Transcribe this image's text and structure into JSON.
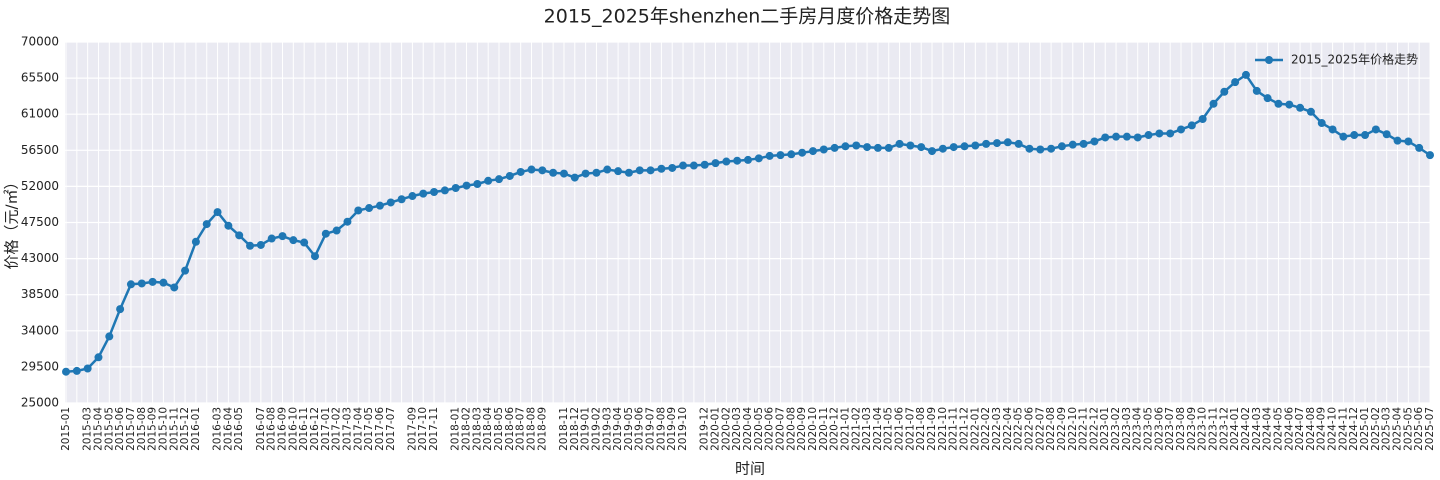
{
  "chart_data": {
    "type": "line",
    "title": "2015_2025年shenzhen二手房月度价格走势图",
    "x_label": "时间",
    "y_label": "价格（元/㎡）",
    "legend": "upper right",
    "grid": true,
    "categories": [
      "2015-01",
      null,
      "2015-03",
      "2015-04",
      "2015-05",
      "2015-06",
      "2015-07",
      "2015-08",
      "2015-09",
      "2015-10",
      "2015-11",
      "2015-12",
      "2016-01",
      null,
      "2016-03",
      "2016-04",
      "2016-05",
      null,
      "2016-07",
      "2016-08",
      "2016-09",
      "2016-10",
      "2016-11",
      "2016-12",
      "2017-01",
      "2017-02",
      "2017-03",
      "2017-04",
      "2017-05",
      "2017-06",
      "2017-07",
      null,
      "2017-09",
      "2017-10",
      "2017-11",
      null,
      "2018-01",
      "2018-02",
      "2018-03",
      "2018-04",
      "2018-05",
      "2018-06",
      "2018-07",
      "2018-08",
      "2018-09",
      null,
      "2018-11",
      "2018-12",
      "2019-01",
      "2019-02",
      "2019-03",
      "2019-04",
      "2019-05",
      "2019-06",
      "2019-07",
      "2019-08",
      "2019-09",
      "2019-10",
      null,
      "2019-12",
      "2020-01",
      "2020-02",
      "2020-03",
      "2020-04",
      "2020-05",
      "2020-06",
      "2020-07",
      "2020-08",
      "2020-09",
      "2020-10",
      "2020-11",
      "2020-12",
      "2021-01",
      "2021-02",
      "2021-03",
      "2021-04",
      "2021-05",
      "2021-06",
      "2021-07",
      "2021-08",
      "2021-09",
      "2021-10",
      "2021-11",
      "2021-12",
      "2022-01",
      "2022-02",
      "2022-03",
      "2022-04",
      "2022-05",
      "2022-06",
      "2022-07",
      "2022-08",
      "2022-09",
      "2022-10",
      "2022-11",
      "2022-12",
      "2023-01",
      "2023-02",
      "2023-03",
      "2023-04",
      "2023-05",
      "2023-06",
      "2023-07",
      "2023-08",
      "2023-09",
      "2023-10",
      "2023-11",
      "2023-12",
      "2024-01",
      "2024-02",
      "2024-03",
      "2024-04",
      "2024-05",
      "2024-06",
      "2024-07",
      "2024-08",
      "2024-09",
      "2024-10",
      "2024-11",
      "2024-12",
      "2025-01",
      "2025-02",
      "2025-03",
      "2025-04",
      "2025-05",
      "2025-06",
      "2025-07"
    ],
    "series": [
      {
        "name": "2015_2025年价格走势",
        "color": "#1f77b4",
        "values": [
          28900,
          29000,
          29300,
          30700,
          33300,
          36700,
          39800,
          39900,
          40100,
          40000,
          39400,
          41500,
          45100,
          47300,
          48800,
          47100,
          45900,
          44600,
          44700,
          45500,
          45800,
          45300,
          45000,
          43300,
          46100,
          46500,
          47600,
          49000,
          49300,
          49600,
          50000,
          50400,
          50800,
          51100,
          51300,
          51500,
          51800,
          52100,
          52300,
          52700,
          52900,
          53300,
          53800,
          54100,
          54000,
          53700,
          53600,
          53100,
          53600,
          53700,
          54100,
          53900,
          53700,
          54000,
          54000,
          54200,
          54300,
          54600,
          54600,
          54700,
          54900,
          55100,
          55200,
          55300,
          55500,
          55800,
          55900,
          56000,
          56200,
          56400,
          56600,
          56800,
          57000,
          57100,
          56900,
          56800,
          56800,
          57300,
          57100,
          56900,
          56400,
          56700,
          56900,
          57000,
          57100,
          57300,
          57400,
          57500,
          57300,
          56700,
          56600,
          56700,
          57000,
          57200,
          57300,
          57600,
          58100,
          58200,
          58200,
          58100,
          58400,
          58600,
          58600,
          59100,
          59600,
          60400,
          62300,
          63800,
          65000,
          65900,
          63900,
          63000,
          62300,
          62200,
          61800,
          61300,
          59900,
          59100,
          58200,
          58400,
          58400,
          59100,
          58500,
          57700,
          57600,
          56800,
          55900
        ]
      }
    ],
    "ylim": [
      25000,
      70000
    ],
    "yticks": [
      25000,
      29500,
      34000,
      38500,
      43000,
      47500,
      52000,
      56500,
      61000,
      65500,
      70000
    ]
  }
}
